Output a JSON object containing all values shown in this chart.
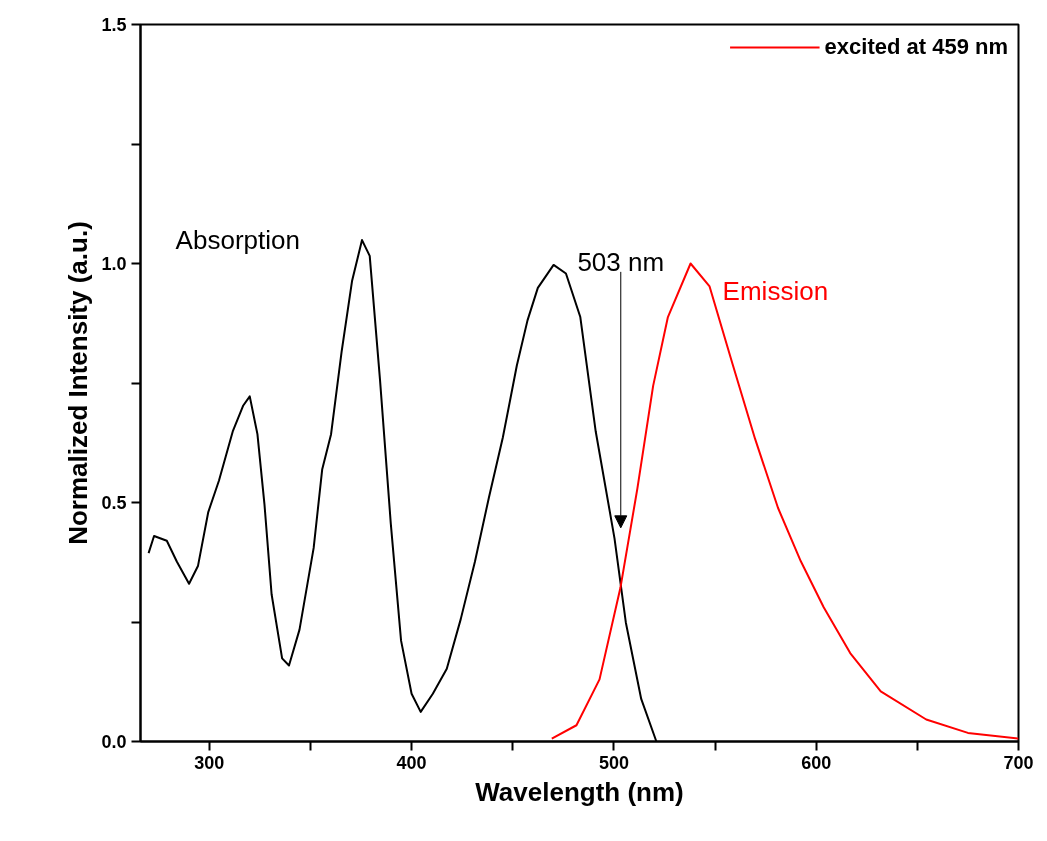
{
  "chart_data": {
    "type": "line",
    "xlabel": "Wavelength (nm)",
    "ylabel": "Normalized Intensity (a.u.)",
    "xlim": [
      266,
      700
    ],
    "ylim": [
      0,
      1.5
    ],
    "xticks": [
      {
        "value": 300,
        "label": "300"
      },
      {
        "value": 350,
        "label": null
      },
      {
        "value": 400,
        "label": "400"
      },
      {
        "value": 450,
        "label": null
      },
      {
        "value": 500,
        "label": "500"
      },
      {
        "value": 550,
        "label": null
      },
      {
        "value": 600,
        "label": "600"
      },
      {
        "value": 650,
        "label": null
      },
      {
        "value": 700,
        "label": "700"
      }
    ],
    "yticks": [
      {
        "value": 0,
        "label": "0.0"
      },
      {
        "value": 0.25,
        "label": null
      },
      {
        "value": 0.5,
        "label": "0.5"
      },
      {
        "value": 0.75,
        "label": null
      },
      {
        "value": 1.0,
        "label": "1.0"
      },
      {
        "value": 1.25,
        "label": null
      },
      {
        "value": 1.5,
        "label": "1.5"
      }
    ],
    "grid": false,
    "legend": "top right",
    "line_style": "solid",
    "marker": "none",
    "series": [
      {
        "color": "#000000",
        "x": [
          270,
          272.7,
          279,
          284,
          290,
          294.4,
          299.5,
          304.8,
          311.7,
          316.8,
          320,
          323.8,
          327.3,
          330.8,
          336,
          339.4,
          344.6,
          351.6,
          355.8,
          360.2,
          365.4,
          370.6,
          375.5,
          379.3,
          384.4,
          389.7,
          394.8,
          400,
          404.5,
          410.5,
          417.4,
          424.3,
          431.3,
          438.2,
          445.1,
          452,
          457.3,
          462.4,
          470.2,
          476.3,
          483.4,
          491,
          500.3,
          505.9,
          513.5,
          521
        ],
        "values": [
          0.394,
          0.43,
          0.42,
          0.376,
          0.33,
          0.367,
          0.48,
          0.546,
          0.65,
          0.703,
          0.722,
          0.643,
          0.495,
          0.308,
          0.174,
          0.159,
          0.234,
          0.405,
          0.569,
          0.643,
          0.815,
          0.964,
          1.049,
          1.016,
          0.756,
          0.457,
          0.211,
          0.1,
          0.062,
          0.1,
          0.152,
          0.256,
          0.376,
          0.51,
          0.636,
          0.786,
          0.881,
          0.949,
          0.997,
          0.979,
          0.888,
          0.649,
          0.425,
          0.249,
          0.089,
          0.0
        ]
      },
      {
        "name": "excited at 459 nm",
        "color": "#ff0000",
        "x": [
          469.3,
          481.5,
          492.9,
          503.2,
          511.6,
          519.4,
          526.7,
          537.9,
          547.3,
          558.5,
          569.8,
          581.1,
          592.4,
          603.7,
          616.8,
          631.9,
          654.4,
          675,
          700
        ],
        "values": [
          0.006,
          0.034,
          0.13,
          0.321,
          0.529,
          0.744,
          0.888,
          1.0,
          0.952,
          0.792,
          0.633,
          0.489,
          0.377,
          0.281,
          0.185,
          0.105,
          0.046,
          0.018,
          0.006
        ]
      }
    ],
    "annotations": [
      "Absorption",
      "Emission",
      "503 nm"
    ]
  }
}
